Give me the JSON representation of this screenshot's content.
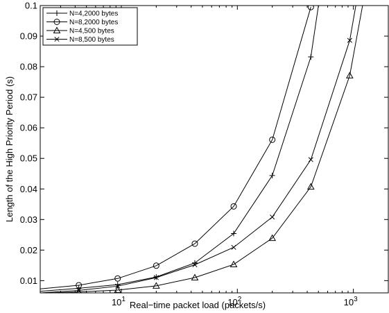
{
  "chart_data": {
    "type": "line",
    "title": "",
    "xlabel": "Real−time packet load (packets/s)",
    "ylabel": "Length of the High Priority Period (s)",
    "xscale": "log",
    "xlim": [
      2,
      2000
    ],
    "ylim": [
      0.006,
      0.1
    ],
    "grid": false,
    "legend_position": "top-left",
    "x_ticks": [
      {
        "value": 10,
        "base": "10",
        "exp": "1"
      },
      {
        "value": 100,
        "base": "10",
        "exp": "2"
      },
      {
        "value": 1000,
        "base": "10",
        "exp": "3"
      }
    ],
    "y_ticks": [
      {
        "value": 0.01,
        "label": "0.01"
      },
      {
        "value": 0.02,
        "label": "0.02"
      },
      {
        "value": 0.03,
        "label": "0.03"
      },
      {
        "value": 0.04,
        "label": "0.04"
      },
      {
        "value": 0.05,
        "label": "0.05"
      },
      {
        "value": 0.06,
        "label": "0.06"
      },
      {
        "value": 0.07,
        "label": "0.07"
      },
      {
        "value": 0.08,
        "label": "0.08"
      },
      {
        "value": 0.09,
        "label": "0.09"
      },
      {
        "value": 0.1,
        "label": "0.1"
      }
    ],
    "series": [
      {
        "name": "N=4,2000 bytes",
        "marker": "plus",
        "x": [
          2,
          4.3,
          9.3,
          20,
          43,
          93,
          200,
          430,
          500
        ],
        "y": [
          0.0065,
          0.0075,
          0.0087,
          0.0112,
          0.0158,
          0.0254,
          0.0444,
          0.0832,
          0.1
        ]
      },
      {
        "name": "N=8,2000 bytes",
        "marker": "circle",
        "x": [
          2,
          4.3,
          9.3,
          20,
          43,
          93,
          200,
          430
        ],
        "y": [
          0.0073,
          0.0085,
          0.0107,
          0.0149,
          0.0221,
          0.0343,
          0.0561,
          0.0995
        ]
      },
      {
        "name": "N=4,500 bytes",
        "marker": "triangle",
        "x": [
          2,
          4.3,
          9.3,
          20,
          43,
          93,
          200,
          430,
          930,
          1200
        ],
        "y": [
          0.0059,
          0.0063,
          0.0069,
          0.0083,
          0.011,
          0.0153,
          0.0239,
          0.0407,
          0.0771,
          0.1
        ]
      },
      {
        "name": "N=8,500 bytes",
        "marker": "x",
        "x": [
          2,
          4.3,
          9.3,
          20,
          43,
          93,
          200,
          430,
          930,
          1050
        ],
        "y": [
          0.006,
          0.0068,
          0.0082,
          0.011,
          0.0152,
          0.0209,
          0.0308,
          0.0496,
          0.0886,
          0.1
        ]
      }
    ]
  }
}
